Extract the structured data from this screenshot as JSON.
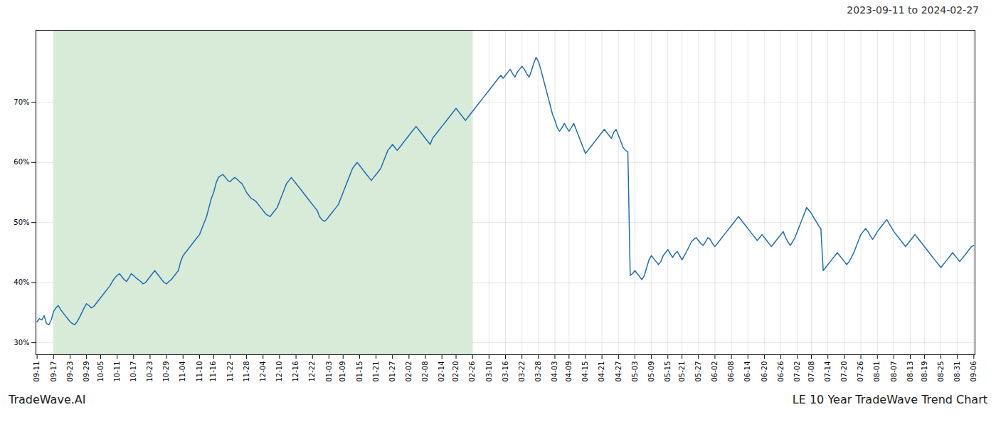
{
  "chart_data": {
    "type": "line",
    "title": "2023-09-11 to 2024-02-27",
    "annotations": [
      "TradeWave.AI",
      "LE 10 Year TradeWave Trend Chart"
    ],
    "categories": [
      "09-11",
      null,
      null,
      null,
      null,
      null,
      null,
      "09-17",
      null,
      null,
      null,
      null,
      null,
      null,
      "09-23",
      null,
      null,
      null,
      null,
      null,
      null,
      "09-29",
      null,
      null,
      null,
      null,
      null,
      "10-05",
      null,
      null,
      null,
      null,
      null,
      null,
      "10-11",
      null,
      null,
      null,
      null,
      null,
      null,
      "10-17",
      null,
      null,
      null,
      null,
      null,
      null,
      "10-23",
      null,
      null,
      null,
      null,
      null,
      null,
      "10-29",
      null,
      null,
      null,
      null,
      null,
      null,
      "11-04",
      null,
      null,
      null,
      null,
      null,
      null,
      "11-10",
      null,
      null,
      null,
      null,
      null,
      "11-16",
      null,
      null,
      null,
      null,
      null,
      null,
      "11-22",
      null,
      null,
      null,
      null,
      null,
      null,
      "11-28",
      null,
      null,
      null,
      null,
      null,
      null,
      "12-04",
      null,
      null,
      null,
      null,
      null,
      null,
      "12-10",
      null,
      null,
      null,
      null,
      null,
      null,
      "12-16",
      null,
      null,
      null,
      null,
      null,
      null,
      "12-22",
      null,
      null,
      null,
      null,
      null,
      null,
      "01-03",
      null,
      null,
      null,
      null,
      null,
      "01-09",
      null,
      null,
      null,
      null,
      null,
      null,
      "01-15",
      null,
      null,
      null,
      null,
      null,
      null,
      "01-21",
      null,
      null,
      null,
      null,
      null,
      null,
      "01-27",
      null,
      null,
      null,
      null,
      null,
      null,
      "02-02",
      null,
      null,
      null,
      null,
      null,
      null,
      "02-08",
      null,
      null,
      null,
      null,
      null,
      null,
      "02-14",
      null,
      null,
      null,
      null,
      null,
      "02-20",
      null,
      null,
      null,
      null,
      null,
      null,
      "02-26",
      null,
      null,
      null,
      null,
      null,
      null,
      "03-10",
      null,
      null,
      null,
      null,
      null,
      null,
      "03-16",
      null,
      null,
      null,
      null,
      null,
      null,
      "03-22",
      null,
      null,
      null,
      null,
      null,
      null,
      "03-28",
      null,
      null,
      null,
      null,
      null,
      null,
      "04-03",
      null,
      null,
      null,
      null,
      null,
      "04-09",
      null,
      null,
      null,
      null,
      null,
      null,
      "04-15",
      null,
      null,
      null,
      null,
      null,
      null,
      "04-21",
      null,
      null,
      null,
      null,
      null,
      null,
      "04-27",
      null,
      null,
      null,
      null,
      null,
      null,
      "05-03",
      null,
      null,
      null,
      null,
      null,
      null,
      "05-09",
      null,
      null,
      null,
      null,
      null,
      null,
      "05-15",
      null,
      null,
      null,
      null,
      null,
      "05-21",
      null,
      null,
      null,
      null,
      null,
      null,
      "05-27",
      null,
      null,
      null,
      null,
      null,
      null,
      "06-02",
      null,
      null,
      null,
      null,
      null,
      null,
      "06-08",
      null,
      null,
      null,
      null,
      null,
      null,
      "06-14",
      null,
      null,
      null,
      null,
      null,
      null,
      "06-20",
      null,
      null,
      null,
      null,
      null,
      null,
      "06-26",
      null,
      null,
      null,
      null,
      null,
      null,
      "07-02",
      null,
      null,
      null,
      null,
      null,
      "07-08",
      null,
      null,
      null,
      null,
      null,
      null,
      "07-14",
      null,
      null,
      null,
      null,
      null,
      null,
      "07-20",
      null,
      null,
      null,
      null,
      null,
      null,
      "07-26",
      null,
      null,
      null,
      null,
      null,
      null,
      "08-01",
      null,
      null,
      null,
      null,
      null,
      null,
      "08-07",
      null,
      null,
      null,
      null,
      null,
      null,
      "08-13",
      null,
      null,
      null,
      null,
      null,
      "08-19",
      null,
      null,
      null,
      null,
      null,
      null,
      "08-25",
      null,
      null,
      null,
      null,
      null,
      null,
      "08-31",
      null,
      null,
      null,
      null,
      null,
      null,
      "09-06"
    ],
    "values": [
      33.5,
      34.0,
      33.8,
      34.5,
      33.2,
      33.0,
      33.8,
      35.2,
      35.8,
      36.2,
      35.5,
      35.0,
      34.5,
      34.0,
      33.5,
      33.2,
      33.0,
      33.5,
      34.2,
      35.0,
      35.8,
      36.5,
      36.2,
      35.8,
      36.0,
      36.5,
      37.0,
      37.5,
      38.0,
      38.5,
      39.0,
      39.5,
      40.2,
      40.8,
      41.2,
      41.5,
      41.0,
      40.5,
      40.2,
      40.8,
      41.5,
      41.2,
      40.8,
      40.5,
      40.2,
      39.8,
      40.0,
      40.5,
      41.0,
      41.5,
      42.0,
      41.5,
      41.0,
      40.5,
      40.0,
      39.8,
      40.2,
      40.5,
      41.0,
      41.5,
      42.0,
      43.5,
      44.5,
      45.0,
      45.5,
      46.0,
      46.5,
      47.0,
      47.5,
      48.0,
      49.0,
      50.0,
      51.0,
      52.5,
      54.0,
      55.0,
      56.5,
      57.5,
      57.8,
      58.0,
      57.5,
      57.0,
      56.8,
      57.2,
      57.5,
      57.2,
      56.8,
      56.5,
      55.8,
      55.0,
      54.5,
      54.0,
      53.8,
      53.5,
      53.0,
      52.5,
      52.0,
      51.5,
      51.2,
      51.0,
      51.5,
      52.0,
      52.5,
      53.5,
      54.5,
      55.5,
      56.5,
      57.0,
      57.5,
      57.0,
      56.5,
      56.0,
      55.5,
      55.0,
      54.5,
      54.0,
      53.5,
      53.0,
      52.5,
      52.0,
      51.0,
      50.5,
      50.2,
      50.5,
      51.0,
      51.5,
      52.0,
      52.5,
      53.0,
      54.0,
      55.0,
      56.0,
      57.0,
      58.0,
      59.0,
      59.5,
      60.0,
      59.5,
      59.0,
      58.5,
      58.0,
      57.5,
      57.0,
      57.5,
      58.0,
      58.5,
      59.0,
      60.0,
      61.0,
      62.0,
      62.5,
      63.0,
      62.5,
      62.0,
      62.5,
      63.0,
      63.5,
      64.0,
      64.5,
      65.0,
      65.5,
      66.0,
      65.5,
      65.0,
      64.5,
      64.0,
      63.5,
      63.0,
      64.0,
      64.5,
      65.0,
      65.5,
      66.0,
      66.5,
      67.0,
      67.5,
      68.0,
      68.5,
      69.0,
      68.5,
      68.0,
      67.5,
      67.0,
      67.5,
      68.0,
      68.5,
      69.0,
      69.5,
      70.0,
      70.5,
      71.0,
      71.5,
      72.0,
      72.5,
      73.0,
      73.5,
      74.0,
      74.5,
      74.0,
      74.5,
      75.0,
      75.5,
      74.8,
      74.2,
      75.0,
      75.5,
      76.0,
      75.5,
      74.8,
      74.2,
      75.2,
      76.5,
      77.5,
      76.8,
      75.5,
      74.0,
      72.5,
      71.0,
      69.5,
      68.0,
      67.0,
      65.8,
      65.2,
      65.8,
      66.5,
      65.8,
      65.2,
      65.8,
      66.5,
      65.5,
      64.5,
      63.5,
      62.5,
      61.5,
      62.0,
      62.5,
      63.0,
      63.5,
      64.0,
      64.5,
      65.0,
      65.5,
      65.0,
      64.5,
      64.0,
      65.0,
      65.5,
      64.5,
      63.5,
      62.5,
      62.0,
      61.8,
      41.2,
      41.5,
      42.0,
      41.5,
      41.0,
      40.5,
      41.2,
      42.5,
      43.8,
      44.5,
      44.0,
      43.5,
      43.0,
      43.5,
      44.5,
      45.0,
      45.5,
      44.8,
      44.2,
      44.8,
      45.2,
      44.5,
      43.8,
      44.5,
      45.2,
      46.0,
      46.8,
      47.2,
      47.5,
      47.0,
      46.5,
      46.2,
      46.8,
      47.5,
      47.2,
      46.5,
      46.0,
      46.5,
      47.0,
      47.5,
      48.0,
      48.5,
      49.0,
      49.5,
      50.0,
      50.5,
      51.0,
      50.5,
      50.0,
      49.5,
      49.0,
      48.5,
      48.0,
      47.5,
      47.0,
      47.5,
      48.0,
      47.5,
      47.0,
      46.5,
      46.0,
      46.5,
      47.0,
      47.5,
      48.0,
      48.5,
      47.5,
      46.8,
      46.2,
      46.8,
      47.5,
      48.5,
      49.5,
      50.5,
      51.5,
      52.5,
      52.0,
      51.5,
      50.8,
      50.2,
      49.5,
      49.0,
      42.0,
      42.5,
      43.0,
      43.5,
      44.0,
      44.5,
      45.0,
      44.5,
      44.0,
      43.5,
      43.0,
      43.5,
      44.2,
      45.0,
      46.0,
      47.0,
      48.0,
      48.5,
      49.0,
      48.5,
      47.8,
      47.2,
      47.8,
      48.5,
      49.0,
      49.5,
      50.0,
      50.5,
      49.8,
      49.2,
      48.5,
      48.0,
      47.5,
      47.0,
      46.5,
      46.0,
      46.5,
      47.0,
      47.5,
      48.0,
      47.5,
      47.0,
      46.5,
      46.0,
      45.5,
      45.0,
      44.5,
      44.0,
      43.5,
      43.0,
      42.5,
      43.0,
      43.5,
      44.0,
      44.5,
      45.0,
      44.5,
      44.0,
      43.5,
      44.0,
      44.5,
      45.0,
      45.5,
      46.0,
      46.2
    ],
    "color": "#1f6eb5",
    "span": {
      "start": "09-17",
      "end": "02-26",
      "color": "#d8ead8"
    },
    "ylim": [
      28,
      82
    ],
    "yticks": [
      {
        "value": 30,
        "label": "30%"
      },
      {
        "value": 40,
        "label": "40%"
      },
      {
        "value": 50,
        "label": "50%"
      },
      {
        "value": 60,
        "label": "60%"
      },
      {
        "value": 70,
        "label": "70%"
      }
    ],
    "grid": true
  }
}
